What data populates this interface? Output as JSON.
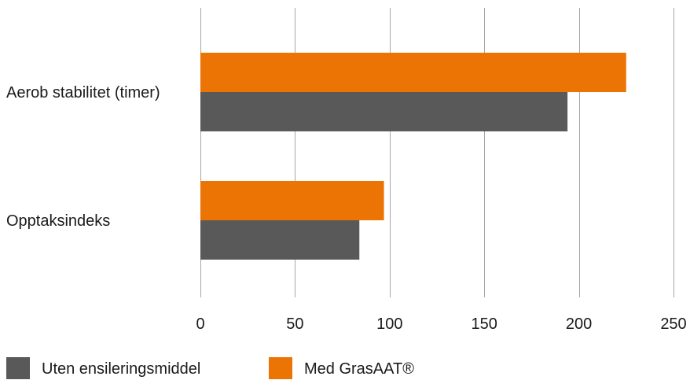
{
  "chart_data": {
    "type": "bar",
    "orientation": "horizontal",
    "categories": [
      "Aerob stabilitet (timer)",
      "Opptaksindeks"
    ],
    "series": [
      {
        "name": "Med GrasAAT®",
        "color": "#ec7405",
        "values": [
          225,
          97
        ]
      },
      {
        "name": "Uten ensileringsmiddel",
        "color": "#595959",
        "values": [
          194,
          84
        ]
      }
    ],
    "xlim": [
      0,
      250
    ],
    "xticks": [
      0,
      50,
      100,
      150,
      200,
      250
    ],
    "xtick_labels": [
      "0",
      "50",
      "100",
      "150",
      "200",
      "250"
    ],
    "grid": true,
    "legend": {
      "position": "bottom-left",
      "items": [
        {
          "label": "Uten ensileringsmiddel",
          "color": "#595959"
        },
        {
          "label": "Med GrasAAT®",
          "color": "#ec7405"
        }
      ]
    }
  }
}
